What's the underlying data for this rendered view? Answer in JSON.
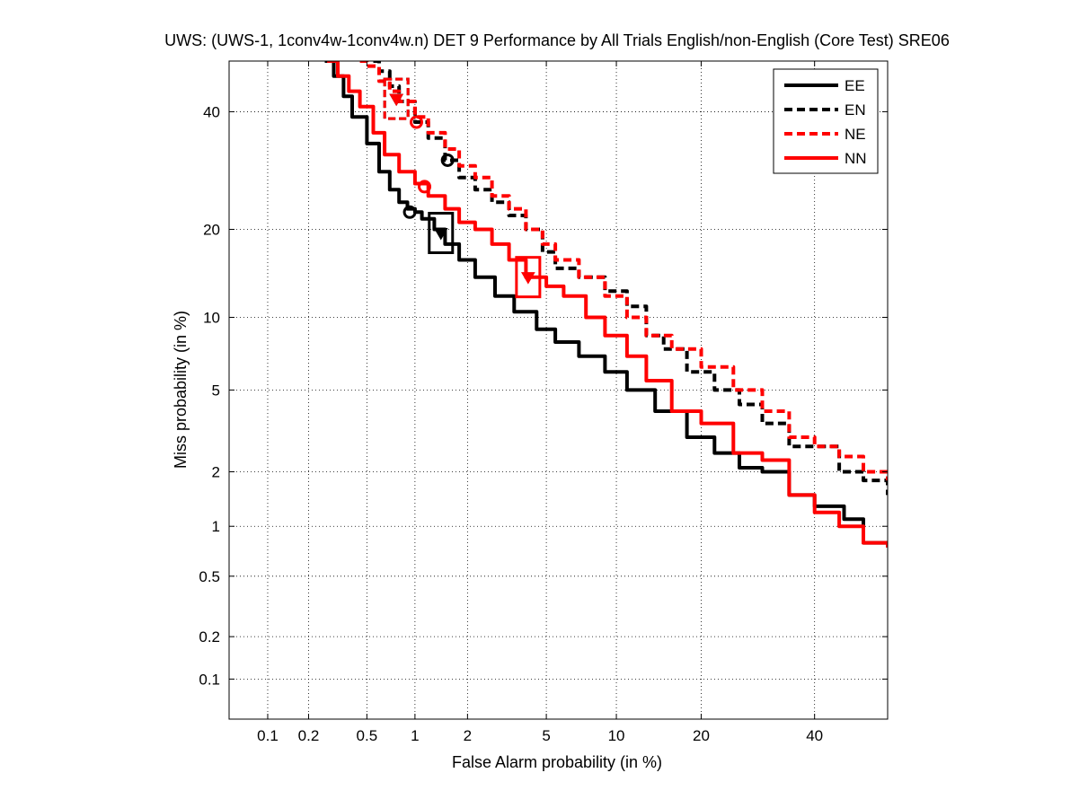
{
  "chart_data": {
    "type": "line",
    "title": "UWS: (UWS-1, 1conv4w-1conv4w.n) DET 9 Performance by All Trials English/non-English (Core Test) SRE06",
    "xlabel": "False Alarm probability (in %)",
    "ylabel": "Miss probability (in %)",
    "x_scale": "probit",
    "y_scale": "probit",
    "xlim": [
      0.05,
      55
    ],
    "ylim": [
      0.05,
      50
    ],
    "grid": true,
    "legend_position": "top-right",
    "x_ticks": [
      0.1,
      0.2,
      0.5,
      1,
      2,
      5,
      10,
      20,
      40
    ],
    "x_tick_labels": [
      "0.1",
      "0.2",
      "0.5",
      "1",
      "2",
      "5",
      "10",
      "20",
      "40"
    ],
    "y_ticks": [
      0.1,
      0.2,
      0.5,
      1,
      2,
      5,
      10,
      20,
      40
    ],
    "y_tick_labels": [
      "0.1",
      "0.2",
      "0.5",
      "1",
      "2",
      "5",
      "10",
      "20",
      "40"
    ],
    "series": [
      {
        "name": "EE",
        "color": "#000000",
        "dash": "solid",
        "x": [
          0.26,
          0.3,
          0.35,
          0.4,
          0.5,
          0.6,
          0.7,
          0.8,
          0.9,
          1.0,
          1.1,
          1.3,
          1.5,
          1.8,
          2.2,
          2.8,
          3.5,
          4.5,
          5.5,
          7,
          9,
          11,
          14,
          18,
          22,
          26,
          30,
          35,
          40,
          46,
          50,
          55
        ],
        "y": [
          50,
          47,
          43,
          39,
          34,
          29,
          26,
          24,
          23,
          22.5,
          21.5,
          20,
          18,
          16,
          14,
          12,
          10.5,
          9,
          8,
          7,
          6,
          5,
          4,
          3,
          2.5,
          2.1,
          2,
          1.5,
          1.3,
          1.1,
          0.8,
          0.75
        ]
      },
      {
        "name": "EN",
        "color": "#000000",
        "dash": "dashed",
        "x": [
          0.55,
          0.6,
          0.7,
          0.8,
          1.0,
          1.2,
          1.5,
          1.8,
          2.2,
          2.7,
          3.3,
          4.0,
          4.8,
          5.5,
          7,
          9,
          11,
          13,
          15,
          18,
          22,
          26,
          30,
          35,
          40,
          45,
          50,
          55
        ],
        "y": [
          50,
          48,
          45,
          42,
          38,
          35,
          31,
          28,
          26,
          24,
          22,
          20,
          17,
          15,
          14,
          12.5,
          11,
          8.5,
          7.5,
          6,
          5,
          4.3,
          3.5,
          2.7,
          2.7,
          2.0,
          1.8,
          1.5
        ]
      },
      {
        "name": "NE",
        "color": "#ff0000",
        "dash": "dashed",
        "x": [
          0.45,
          0.5,
          0.6,
          0.7,
          0.8,
          1.0,
          1.2,
          1.5,
          1.8,
          2.2,
          2.7,
          3.3,
          4.0,
          4.8,
          5.5,
          7,
          9,
          11,
          13,
          16,
          20,
          25,
          30,
          35,
          40,
          45,
          50,
          55
        ],
        "y": [
          50,
          49,
          46,
          44,
          42,
          39,
          36,
          33,
          30,
          28,
          25,
          23,
          20,
          18,
          16,
          14,
          12,
          10,
          8.5,
          7.5,
          6.3,
          5,
          4,
          3,
          2.7,
          2.4,
          2.0,
          1.8
        ]
      },
      {
        "name": "NN",
        "color": "#ff0000",
        "dash": "solid",
        "x": [
          0.27,
          0.32,
          0.38,
          0.45,
          0.55,
          0.65,
          0.8,
          1.0,
          1.2,
          1.5,
          1.8,
          2.2,
          2.7,
          3.3,
          4.0,
          5.0,
          6.0,
          7.5,
          9,
          11,
          13,
          16,
          20,
          25,
          30,
          35,
          40,
          45,
          50,
          55
        ],
        "y": [
          50,
          47,
          44,
          41,
          36,
          32,
          29,
          27,
          25,
          23,
          21,
          20,
          18,
          16,
          14,
          13,
          12,
          10,
          8.5,
          7,
          5.5,
          4,
          3.5,
          2.5,
          2.3,
          1.5,
          1.2,
          1.0,
          0.8,
          0.75
        ]
      }
    ],
    "markers": [
      {
        "series": "EE",
        "kind": "circle",
        "x": 0.93,
        "y": 22.5
      },
      {
        "series": "EE",
        "kind": "triangle-in-box",
        "x": 1.42,
        "y": 19.5
      },
      {
        "series": "EN",
        "kind": "circle",
        "x": 1.55,
        "y": 31
      },
      {
        "series": "EN",
        "kind": "triangle-in-box",
        "x": 0.77,
        "y": 42.5
      },
      {
        "series": "NE",
        "kind": "circle",
        "x": 1.02,
        "y": 38
      },
      {
        "series": "NE",
        "kind": "triangle-in-box",
        "x": 0.77,
        "y": 42.5
      },
      {
        "series": "NN",
        "kind": "circle",
        "x": 1.14,
        "y": 26.5
      },
      {
        "series": "NN",
        "kind": "triangle-in-box",
        "x": 4.1,
        "y": 14
      }
    ]
  }
}
